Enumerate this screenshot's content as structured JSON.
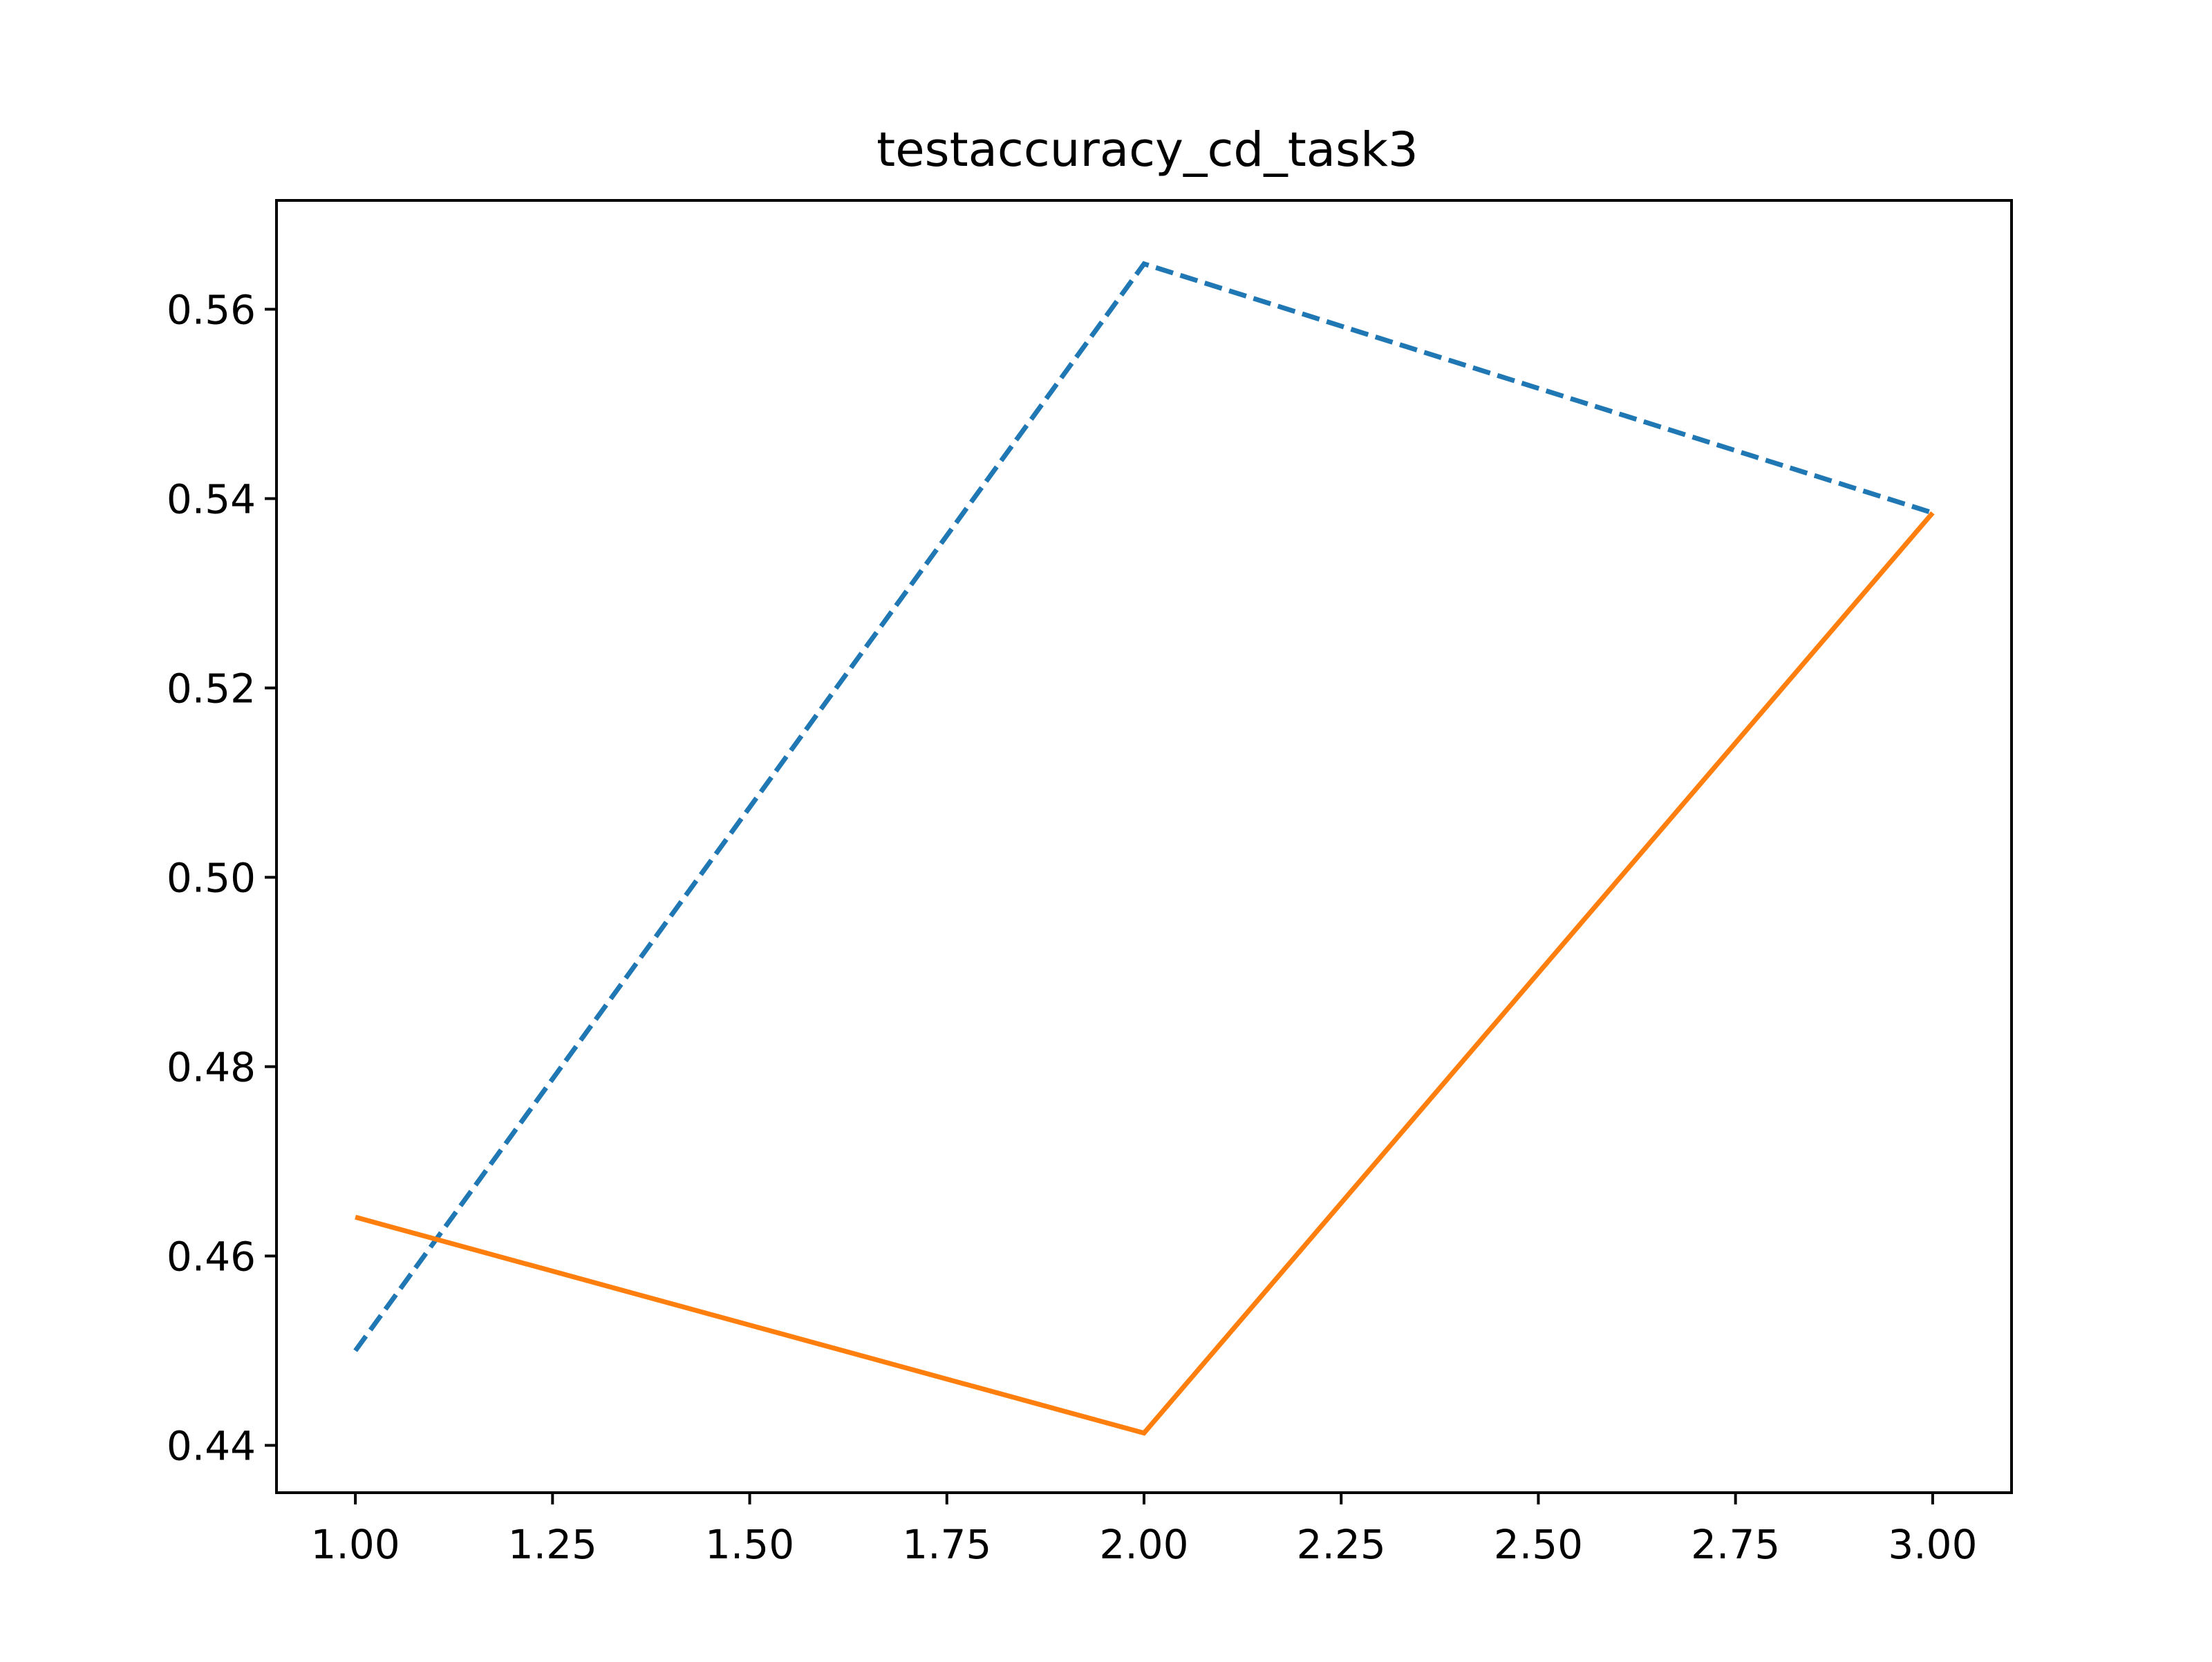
{
  "chart_data": {
    "type": "line",
    "title": "testaccuracy_cd_task3",
    "xlabel": "",
    "ylabel": "",
    "xlim": [
      0.9,
      3.1
    ],
    "ylim": [
      0.435,
      0.5715
    ],
    "x_ticks": [
      1.0,
      1.25,
      1.5,
      1.75,
      2.0,
      2.25,
      2.5,
      2.75,
      3.0
    ],
    "x_tick_labels": [
      "1.00",
      "1.25",
      "1.50",
      "1.75",
      "2.00",
      "2.25",
      "2.50",
      "2.75",
      "3.00"
    ],
    "y_ticks": [
      0.44,
      0.46,
      0.48,
      0.5,
      0.52,
      0.54,
      0.56
    ],
    "y_tick_labels": [
      "0.44",
      "0.46",
      "0.48",
      "0.50",
      "0.52",
      "0.54",
      "0.56"
    ],
    "grid": false,
    "legend": "none",
    "x": [
      1,
      2,
      3
    ],
    "series": [
      {
        "values": [
          0.45,
          0.5648,
          0.5385
        ],
        "color": "#1f77b4",
        "linestyle": "dashed"
      },
      {
        "values": [
          0.4641,
          0.4413,
          0.5385
        ],
        "color": "#ff7f0e",
        "linestyle": "solid"
      }
    ]
  }
}
